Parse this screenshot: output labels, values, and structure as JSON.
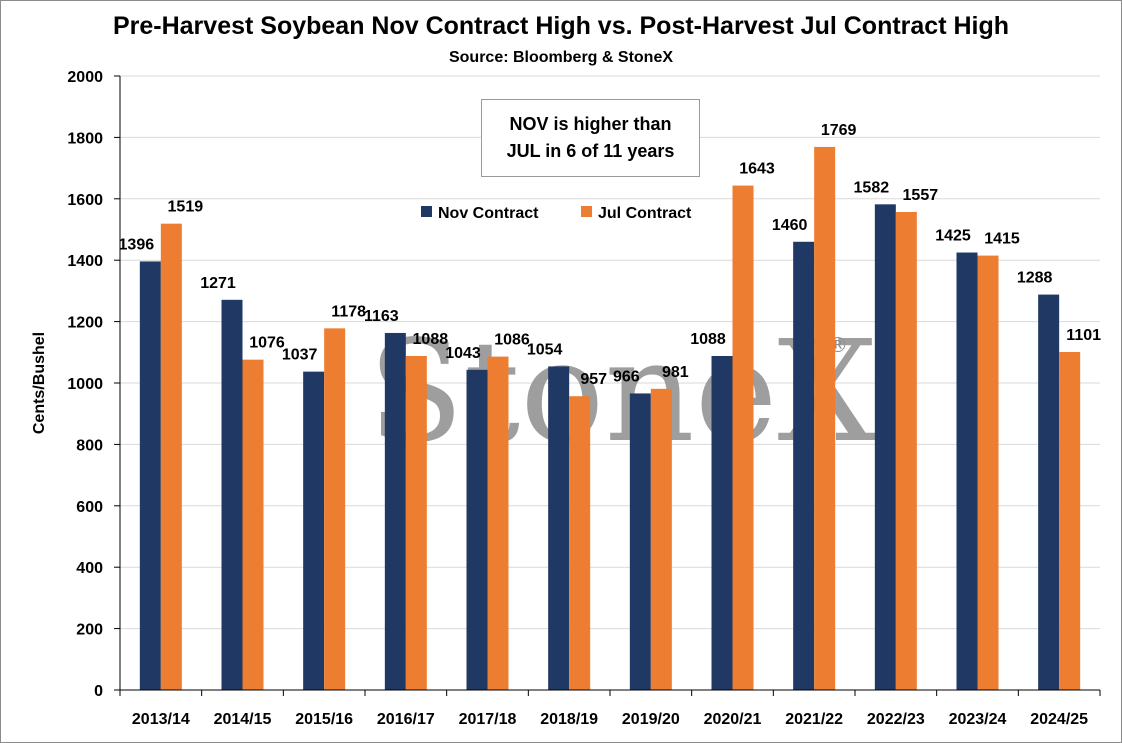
{
  "chart_data": {
    "type": "bar",
    "title": "Pre-Harvest Soybean Nov Contract High vs. Post-Harvest Jul Contract High",
    "subtitle": "Source: Bloomberg & StoneX",
    "ylabel": "Cents/Bushel",
    "xlabel": "",
    "ylim": [
      0,
      2000
    ],
    "yticks": [
      0,
      200,
      400,
      600,
      800,
      1000,
      1200,
      1400,
      1600,
      1800,
      2000
    ],
    "categories": [
      "2013/14",
      "2014/15",
      "2015/16",
      "2016/17",
      "2017/18",
      "2018/19",
      "2019/20",
      "2020/21",
      "2021/22",
      "2022/23",
      "2023/24",
      "2024/25"
    ],
    "series": [
      {
        "name": "Nov Contract",
        "color": "#203864",
        "values": [
          1396,
          1271,
          1037,
          1163,
          1043,
          1054,
          966,
          1088,
          1460,
          1582,
          1425,
          1288
        ]
      },
      {
        "name": "Jul Contract",
        "color": "#ed7d31",
        "values": [
          1519,
          1076,
          1178,
          1088,
          1086,
          957,
          981,
          1643,
          1769,
          1557,
          1415,
          1101
        ]
      }
    ],
    "annotation": "NOV is higher than\nJUL in 6 of 11 years",
    "watermark": "StoneX",
    "legend_position": "top-center",
    "grid": true
  }
}
